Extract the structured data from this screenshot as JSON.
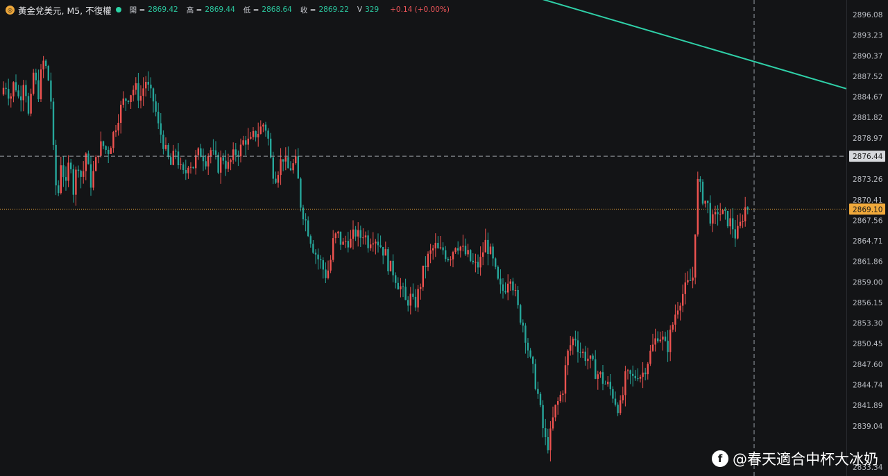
{
  "header": {
    "icon": "gold-coin-icon",
    "title": "黃金兌美元, M5, 不復權",
    "open_label": "開 =",
    "open_value": "2869.42",
    "high_label": "高 =",
    "high_value": "2869.44",
    "low_label": "低 =",
    "low_value": "2868.64",
    "close_label": "收 =",
    "close_value": "2869.22",
    "volume_label": "V",
    "volume_value": "329",
    "change": "+0.14 (+0.00%)"
  },
  "watermark": {
    "icon": "facebook-icon",
    "text": "@春天適合中杯大冰奶"
  },
  "colors": {
    "background": "#131416",
    "up": "#ef5350",
    "down": "#26a69a",
    "trendline": "#2fd0a8",
    "price_tag": "#f0a93b",
    "crosshair_tag": "#d6d8dc"
  },
  "chart_data": {
    "type": "candlestick",
    "symbol": "黃金兌美元",
    "timeframe": "M5",
    "y_axis_ticks": [
      "2896.08",
      "2893.23",
      "2890.37",
      "2887.52",
      "2884.67",
      "2881.82",
      "2878.97",
      "2873.26",
      "2870.41",
      "2867.56",
      "2864.71",
      "2861.86",
      "2859.00",
      "2856.15",
      "2853.30",
      "2850.45",
      "2847.60",
      "2844.74",
      "2841.89",
      "2839.04",
      "2833.34"
    ],
    "ylim": [
      2832,
      2898
    ],
    "current_price": "2869.10",
    "crosshair_price": "2876.44",
    "grid": false,
    "price_path": [
      [
        0,
        2885.0
      ],
      [
        8,
        2886.5
      ],
      [
        15,
        2884.6
      ],
      [
        21,
        2887.0
      ],
      [
        28,
        2884.0
      ],
      [
        35,
        2887.8
      ],
      [
        42,
        2881.0
      ],
      [
        48,
        2888.0
      ],
      [
        55,
        2885.0
      ],
      [
        62,
        2889.6
      ],
      [
        68,
        2888.2
      ],
      [
        73,
        2885.0
      ],
      [
        78,
        2875.0
      ],
      [
        83,
        2870.0
      ],
      [
        88,
        2876.0
      ],
      [
        95,
        2872.0
      ],
      [
        101,
        2877.0
      ],
      [
        106,
        2871.5
      ],
      [
        112,
        2876.0
      ],
      [
        118,
        2873.0
      ],
      [
        124,
        2877.0
      ],
      [
        130,
        2872.5
      ],
      [
        136,
        2874.5
      ],
      [
        142,
        2877.5
      ],
      [
        148,
        2878.0
      ],
      [
        155,
        2877.0
      ],
      [
        162,
        2879.0
      ],
      [
        170,
        2882.0
      ],
      [
        178,
        2884.0
      ],
      [
        186,
        2885.0
      ],
      [
        194,
        2886.0
      ],
      [
        202,
        2884.5
      ],
      [
        210,
        2887.0
      ],
      [
        216,
        2885.0
      ],
      [
        222,
        2884.0
      ],
      [
        228,
        2880.5
      ],
      [
        234,
        2879.0
      ],
      [
        240,
        2876.5
      ],
      [
        247,
        2875.0
      ],
      [
        253,
        2877.5
      ],
      [
        260,
        2874.5
      ],
      [
        266,
        2873.5
      ],
      [
        272,
        2876.0
      ],
      [
        278,
        2875.0
      ],
      [
        284,
        2876.5
      ],
      [
        290,
        2877.0
      ],
      [
        297,
        2876.0
      ],
      [
        303,
        2877.5
      ],
      [
        309,
        2876.0
      ],
      [
        315,
        2875.0
      ],
      [
        321,
        2876.5
      ],
      [
        328,
        2874.8
      ],
      [
        334,
        2876.0
      ],
      [
        340,
        2877.0
      ],
      [
        347,
        2877.5
      ],
      [
        353,
        2879.0
      ],
      [
        360,
        2878.0
      ],
      [
        367,
        2879.5
      ],
      [
        374,
        2880.0
      ],
      [
        380,
        2881.0
      ],
      [
        385,
        2880.0
      ],
      [
        390,
        2876.0
      ],
      [
        396,
        2873.5
      ],
      [
        402,
        2875.0
      ],
      [
        408,
        2876.5
      ],
      [
        414,
        2874.5
      ],
      [
        420,
        2875.0
      ],
      [
        427,
        2875.5
      ],
      [
        433,
        2870.0
      ],
      [
        439,
        2868.0
      ],
      [
        445,
        2866.0
      ],
      [
        451,
        2864.0
      ],
      [
        457,
        2862.5
      ],
      [
        463,
        2861.5
      ],
      [
        469,
        2860.0
      ],
      [
        475,
        2861.0
      ],
      [
        481,
        2865.0
      ],
      [
        487,
        2865.5
      ],
      [
        494,
        2864.0
      ],
      [
        500,
        2865.0
      ],
      [
        506,
        2864.5
      ],
      [
        512,
        2866.0
      ],
      [
        518,
        2865.0
      ],
      [
        524,
        2866.0
      ],
      [
        530,
        2864.5
      ],
      [
        537,
        2865.5
      ],
      [
        543,
        2865.0
      ],
      [
        549,
        2864.0
      ],
      [
        555,
        2863.0
      ],
      [
        561,
        2861.0
      ],
      [
        567,
        2860.5
      ],
      [
        573,
        2859.0
      ],
      [
        579,
        2858.0
      ],
      [
        585,
        2856.0
      ],
      [
        591,
        2857.0
      ],
      [
        597,
        2855.5
      ],
      [
        603,
        2857.5
      ],
      [
        609,
        2860.0
      ],
      [
        615,
        2862.0
      ],
      [
        621,
        2863.0
      ],
      [
        627,
        2864.0
      ],
      [
        633,
        2863.0
      ],
      [
        639,
        2863.5
      ],
      [
        645,
        2862.5
      ],
      [
        651,
        2863.0
      ],
      [
        657,
        2864.5
      ],
      [
        663,
        2864.0
      ],
      [
        669,
        2863.0
      ],
      [
        675,
        2862.5
      ],
      [
        681,
        2861.5
      ],
      [
        687,
        2861.0
      ],
      [
        693,
        2862.0
      ],
      [
        699,
        2864.5
      ],
      [
        705,
        2863.5
      ],
      [
        711,
        2861.5
      ],
      [
        717,
        2859.0
      ],
      [
        723,
        2857.5
      ],
      [
        729,
        2858.5
      ],
      [
        735,
        2860.5
      ],
      [
        741,
        2858.0
      ],
      [
        747,
        2855.0
      ],
      [
        753,
        2853.5
      ],
      [
        759,
        2851.0
      ],
      [
        764,
        2848.0
      ],
      [
        770,
        2846.0
      ],
      [
        776,
        2843.0
      ],
      [
        782,
        2839.0
      ],
      [
        788,
        2836.0
      ],
      [
        793,
        2837.5
      ],
      [
        799,
        2841.0
      ],
      [
        805,
        2842.5
      ],
      [
        811,
        2844.0
      ],
      [
        817,
        2848.5
      ],
      [
        823,
        2850.5
      ],
      [
        829,
        2851.5
      ],
      [
        835,
        2849.5
      ],
      [
        841,
        2849.0
      ],
      [
        847,
        2848.5
      ],
      [
        853,
        2847.5
      ],
      [
        859,
        2846.5
      ],
      [
        865,
        2846.0
      ],
      [
        871,
        2845.0
      ],
      [
        877,
        2844.5
      ],
      [
        883,
        2843.5
      ],
      [
        889,
        2842.0
      ],
      [
        895,
        2841.5
      ],
      [
        901,
        2845.5
      ],
      [
        907,
        2846.0
      ],
      [
        913,
        2845.5
      ],
      [
        919,
        2846.5
      ],
      [
        925,
        2846.0
      ],
      [
        931,
        2847.5
      ],
      [
        937,
        2849.0
      ],
      [
        943,
        2850.5
      ],
      [
        949,
        2852.0
      ],
      [
        955,
        2851.0
      ],
      [
        961,
        2849.5
      ],
      [
        967,
        2852.0
      ],
      [
        973,
        2854.5
      ],
      [
        979,
        2856.5
      ],
      [
        985,
        2857.5
      ],
      [
        991,
        2858.5
      ],
      [
        997,
        2859.5
      ],
      [
        1001,
        2860.0
      ],
      [
        1004,
        2874.0
      ],
      [
        1009,
        2872.0
      ],
      [
        1014,
        2870.5
      ],
      [
        1019,
        2870.0
      ],
      [
        1024,
        2868.0
      ],
      [
        1029,
        2867.0
      ],
      [
        1034,
        2869.0
      ],
      [
        1039,
        2868.5
      ],
      [
        1044,
        2868.0
      ],
      [
        1050,
        2867.5
      ],
      [
        1055,
        2867.0
      ],
      [
        1060,
        2865.5
      ],
      [
        1065,
        2866.0
      ],
      [
        1070,
        2868.0
      ],
      [
        1075,
        2869.5
      ],
      [
        1080,
        2869.2
      ]
    ],
    "trendline": {
      "start_price": 2902.5,
      "end_price": 2885.8
    }
  }
}
